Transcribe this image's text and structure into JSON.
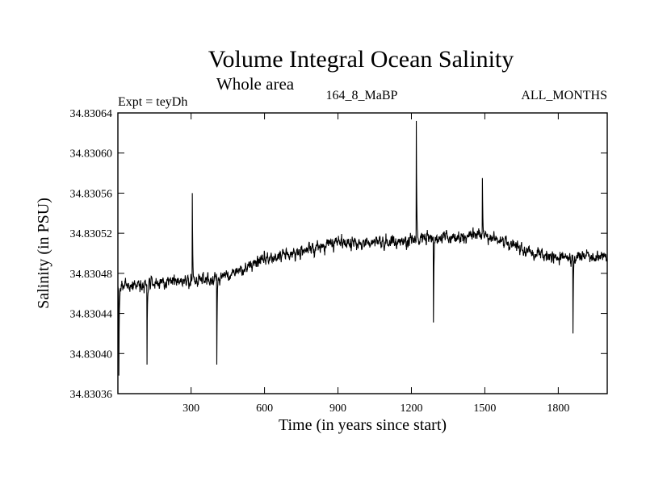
{
  "chart_data": {
    "type": "line",
    "title": "Volume Integral Ocean Salinity",
    "subtitle": "Whole area",
    "experiment_label": "Expt = teyDh",
    "run_label": "164_8_MaBP",
    "months_label": "ALL_MONTHS",
    "xlabel": "Time (in years since start)",
    "ylabel": "Salinity (in PSU)",
    "xlim": [
      1,
      2000
    ],
    "ylim": [
      34.83036,
      34.83064
    ],
    "xticks": [
      300,
      600,
      900,
      1200,
      1500,
      1800
    ],
    "xtick_labels": [
      "300",
      "600",
      "900",
      "1200",
      "1500",
      "1800"
    ],
    "yticks": [
      34.83036,
      34.8304,
      34.83044,
      34.83048,
      34.83052,
      34.83056,
      34.8306,
      34.83064
    ],
    "ytick_labels": [
      "34.83036",
      "34.83040",
      "34.83044",
      "34.83048",
      "34.83052",
      "34.83056",
      "34.83060",
      "34.83064"
    ],
    "grid": false,
    "series": [
      {
        "name": "salinity",
        "trend": {
          "x": [
            1,
            150,
            300,
            450,
            600,
            900,
            1200,
            1500,
            1650,
            1800,
            2000
          ],
          "y": [
            34.830466,
            34.830471,
            34.830473,
            34.830477,
            34.830494,
            34.83051,
            34.830513,
            34.830518,
            34.830505,
            34.830495,
            34.830496
          ]
        },
        "noise_std": 3.2e-06,
        "notable_points": [
          {
            "x": 5,
            "y": 34.830378
          },
          {
            "x": 120,
            "y": 34.830389
          },
          {
            "x": 305,
            "y": 34.83056
          },
          {
            "x": 405,
            "y": 34.830389
          },
          {
            "x": 1220,
            "y": 34.830632
          },
          {
            "x": 1290,
            "y": 34.830431
          },
          {
            "x": 1490,
            "y": 34.830575
          },
          {
            "x": 1860,
            "y": 34.83042
          }
        ]
      }
    ]
  }
}
